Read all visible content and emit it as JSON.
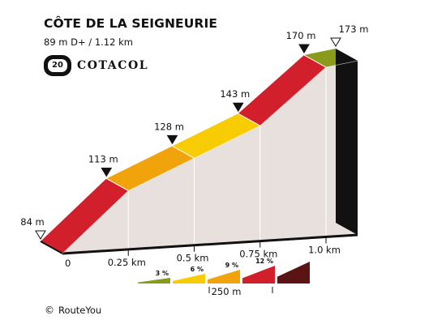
{
  "header": {
    "title": "CÔTE DE LA SEIGNEURIE",
    "subtitle": "89 m D+ / 1.12 km",
    "badge_number": "20",
    "brand": "COTACOL"
  },
  "footer": {
    "copyright_symbol": "©",
    "copyright_text": "RouteYou"
  },
  "chart_data": {
    "type": "area",
    "title": "CÔTE DE LA SEIGNEURIE",
    "subtitle": "89 m D+ / 1.12 km",
    "xlabel": "",
    "ylabel": "",
    "x_unit": "km",
    "y_unit": "m",
    "x_ticks": [
      {
        "value": 0,
        "label": "0"
      },
      {
        "value": 0.25,
        "label": "0.25 km"
      },
      {
        "value": 0.5,
        "label": "0.5 km"
      },
      {
        "value": 0.75,
        "label": "0.75 km"
      },
      {
        "value": 1.0,
        "label": "1.0 km"
      }
    ],
    "xlim": [
      0,
      1.12
    ],
    "ylim": [
      84,
      173
    ],
    "points": [
      {
        "x": 0,
        "y": 84,
        "label": "84 m",
        "marker": "start"
      },
      {
        "x": 0.25,
        "y": 113,
        "label": "113 m",
        "marker": "segment"
      },
      {
        "x": 0.5,
        "y": 128,
        "label": "128 m",
        "marker": "segment"
      },
      {
        "x": 0.75,
        "y": 143,
        "label": "143 m",
        "marker": "segment"
      },
      {
        "x": 1.0,
        "y": 170,
        "label": "170 m",
        "marker": "segment"
      },
      {
        "x": 1.12,
        "y": 173,
        "label": "173 m",
        "marker": "end"
      }
    ],
    "segments": [
      {
        "from": 0,
        "to": 0.25,
        "color": "#d11f2b"
      },
      {
        "from": 0.25,
        "to": 0.5,
        "color": "#f0a30a"
      },
      {
        "from": 0.5,
        "to": 0.75,
        "color": "#f8cc03"
      },
      {
        "from": 0.75,
        "to": 1.0,
        "color": "#d11f2b"
      },
      {
        "from": 1.0,
        "to": 1.12,
        "color": "#8a9a1a"
      }
    ],
    "gradient_legend": [
      {
        "label": "3 %",
        "color": "#8a9a1a"
      },
      {
        "label": "6 %",
        "color": "#f8cc03"
      },
      {
        "label": "9 %",
        "color": "#f0a30a"
      },
      {
        "label": "12 %",
        "color": "#d11f2b"
      },
      {
        "label": "",
        "color": "#5a1414"
      }
    ],
    "legend_scale_label": "250 m",
    "colors": {
      "side": "#e8e0dd",
      "base": "#111111"
    }
  }
}
